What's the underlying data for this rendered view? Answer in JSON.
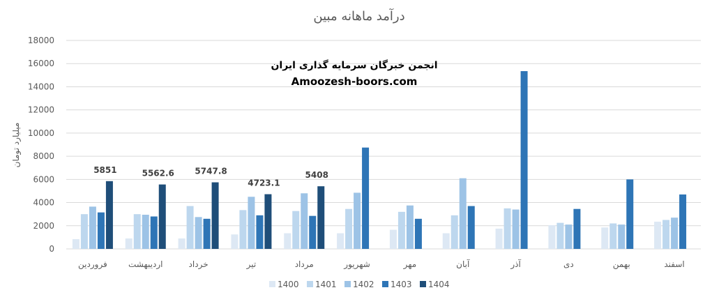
{
  "chart_data": {
    "type": "bar",
    "title": "درآمد ماهانه مبین",
    "xlabel": "",
    "ylabel": "میلیارد تومان",
    "ylim": [
      0,
      18000
    ],
    "yticks": [
      0,
      2000,
      4000,
      6000,
      8000,
      10000,
      12000,
      14000,
      16000,
      18000
    ],
    "grid": true,
    "legend_position": "bottom",
    "watermark": [
      "انجمن خبرگان سرمایه گذاری ایران",
      "Amoozesh-boors.com"
    ],
    "categories": [
      "فروردین",
      "اردیبهشت",
      "خرداد",
      "تیر",
      "مرداد",
      "شهریور",
      "مهر",
      "آبان",
      "آذر",
      "دی",
      "بهمن",
      "اسفند"
    ],
    "series": [
      {
        "name": "1400",
        "color": "#dde8f4",
        "values": [
          840,
          900,
          900,
          1250,
          1350,
          1350,
          1650,
          1350,
          1750,
          2050,
          1850,
          2350
        ]
      },
      {
        "name": "1401",
        "color": "#bdd7ee",
        "values": [
          3000,
          3000,
          3700,
          3350,
          3270,
          3450,
          3200,
          2900,
          3500,
          2250,
          2200,
          2500
        ]
      },
      {
        "name": "1402",
        "color": "#9dc3e6",
        "values": [
          3650,
          2950,
          2750,
          4500,
          4800,
          4850,
          3750,
          6100,
          3400,
          2100,
          2100,
          2700
        ]
      },
      {
        "name": "1403",
        "color": "#2e75b6",
        "values": [
          3150,
          2800,
          2600,
          2900,
          2850,
          8750,
          2600,
          3700,
          15350,
          3450,
          6000,
          4700
        ]
      },
      {
        "name": "1404",
        "color": "#1f4e79",
        "values": [
          5851,
          5562.6,
          5747.8,
          4723.1,
          5408,
          null,
          null,
          null,
          null,
          null,
          null,
          null
        ]
      }
    ],
    "data_labels": {
      "series": "1404",
      "labels": [
        "5851",
        "5562.6",
        "5747.8",
        "4723.1",
        "5408"
      ]
    }
  }
}
